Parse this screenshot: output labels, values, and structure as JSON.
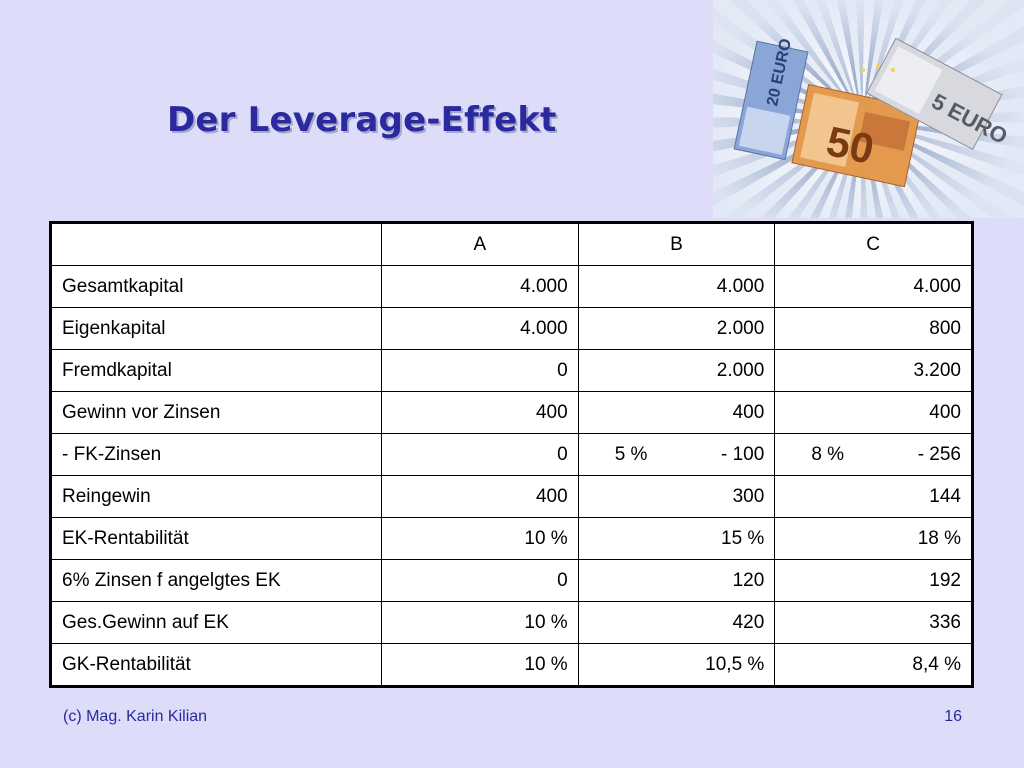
{
  "slide": {
    "title": "Der Leverage-Effekt",
    "footer_left": "(c) Mag. Karin Kilian",
    "page_number": "16"
  },
  "photo": {
    "icon": "euro-banknotes-image",
    "note_20": "20 EURO",
    "note_5": "5 EURO",
    "note_50": "50"
  },
  "table": {
    "headers": [
      "",
      "A",
      "B",
      "C"
    ],
    "rows": [
      {
        "label": "Gesamtkapital",
        "a": "4.000",
        "b": "4.000",
        "c": "4.000"
      },
      {
        "label": "Eigenkapital",
        "a": "4.000",
        "b": "2.000",
        "c": "800"
      },
      {
        "label": "Fremdkapital",
        "a": "0",
        "b": "2.000",
        "c": "3.200"
      },
      {
        "label": "Gewinn vor Zinsen",
        "a": "400",
        "b": "400",
        "c": "400"
      },
      {
        "label": "- FK-Zinsen",
        "a": "0",
        "b_rate": "5 %",
        "b": "- 100",
        "c_rate": "8 %",
        "c": "- 256"
      },
      {
        "label": "Reingewin",
        "a": "400",
        "b": "300",
        "c": "144"
      },
      {
        "label": "EK-Rentabilität",
        "a": "10 %",
        "b": "15 %",
        "c": "18 %"
      },
      {
        "label": "6% Zinsen f angelgtes EK",
        "a": "0",
        "b": "120",
        "c": "192"
      },
      {
        "label": "Ges.Gewinn auf EK",
        "a": "10 %",
        "b": "420",
        "c": "336"
      },
      {
        "label": "GK-Rentabilität",
        "a": "10 %",
        "b": "10,5 %",
        "c": "8,4 %"
      }
    ]
  },
  "colors": {
    "background": "#ddddfa",
    "title": "#2a2a9e",
    "footer": "#2a2a9e"
  }
}
